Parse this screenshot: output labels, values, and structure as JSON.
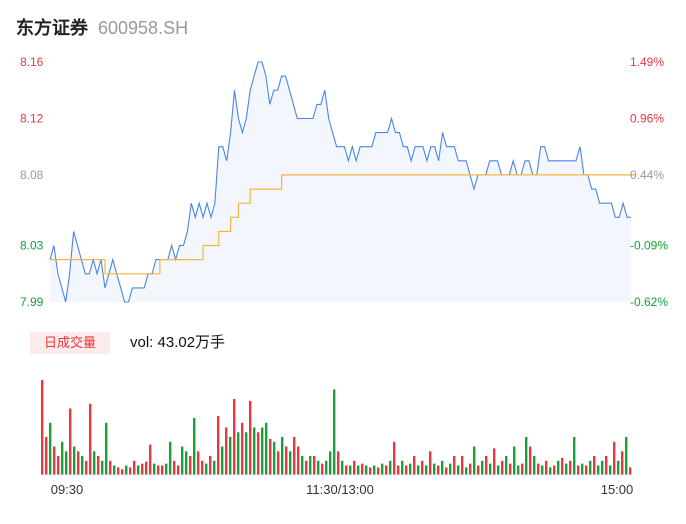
{
  "header": {
    "name": "东方证券",
    "code": "600958.SH"
  },
  "volume_panel": {
    "badge": "日成交量",
    "label_prefix": "vol: ",
    "value": "43.02万手"
  },
  "colors": {
    "up": "#e8383d",
    "down": "#1aa038",
    "neutral": "#999999",
    "price_line": "#4a85e8",
    "avg_line": "#f4b63f"
  },
  "chart_data": [
    {
      "type": "line",
      "title": "",
      "y_ticks": [
        "8.16",
        "8.12",
        "8.08",
        "8.03",
        "7.99"
      ],
      "y_tick_values": [
        8.16,
        8.12,
        8.08,
        8.03,
        7.99
      ],
      "pct_ticks": [
        "1.49%",
        "0.96%",
        "0.44%",
        "-0.09%",
        "-0.62%"
      ],
      "x_ticks": [
        "09:30",
        "11:30/13:00",
        "15:00"
      ],
      "ylim": [
        7.99,
        8.16
      ],
      "grid": false,
      "series": [
        {
          "values": [
            8.02,
            8.03,
            8.01,
            8.0,
            7.99,
            8.01,
            8.04,
            8.03,
            8.02,
            8.01,
            8.01,
            8.02,
            8.01,
            8.02,
            8.0,
            8.01,
            8.02,
            8.01,
            8.0,
            7.99,
            7.99,
            8.0,
            8.0,
            8.0,
            8.0,
            8.01,
            8.01,
            8.02,
            8.02,
            8.02,
            8.02,
            8.03,
            8.02,
            8.03,
            8.03,
            8.04,
            8.06,
            8.05,
            8.06,
            8.05,
            8.06,
            8.05,
            8.06,
            8.1,
            8.1,
            8.09,
            8.11,
            8.14,
            8.12,
            8.11,
            8.12,
            8.14,
            8.15,
            8.16,
            8.16,
            8.15,
            8.13,
            8.14,
            8.14,
            8.15,
            8.15,
            8.14,
            8.13,
            8.12,
            8.12,
            8.12,
            8.12,
            8.12,
            8.13,
            8.13,
            8.14,
            8.12,
            8.11,
            8.1,
            8.1,
            8.1,
            8.09,
            8.1,
            8.09,
            8.1,
            8.1,
            8.1,
            8.1,
            8.11,
            8.11,
            8.11,
            8.11,
            8.12,
            8.11,
            8.11,
            8.1,
            8.1,
            8.09,
            8.1,
            8.1,
            8.1,
            8.09,
            8.1,
            8.1,
            8.09,
            8.11,
            8.1,
            8.1,
            8.1,
            8.09,
            8.09,
            8.09,
            8.08,
            8.07,
            8.08,
            8.08,
            8.08,
            8.09,
            8.09,
            8.09,
            8.08,
            8.08,
            8.08,
            8.09,
            8.08,
            8.08,
            8.09,
            8.09,
            8.08,
            8.08,
            8.1,
            8.1,
            8.09,
            8.09,
            8.09,
            8.09,
            8.09,
            8.09,
            8.09,
            8.09,
            8.1,
            8.08,
            8.08,
            8.07,
            8.07,
            8.06,
            8.06,
            8.06,
            8.06,
            8.05,
            8.05,
            8.06,
            8.05,
            8.05
          ]
        },
        {
          "values": [
            8.02,
            8.02,
            8.02,
            8.02,
            8.02,
            8.02,
            8.02,
            8.02,
            8.02,
            8.02,
            8.02,
            8.02,
            8.02,
            8.02,
            8.01,
            8.01,
            8.01,
            8.01,
            8.01,
            8.01,
            8.01,
            8.01,
            8.01,
            8.01,
            8.01,
            8.01,
            8.01,
            8.01,
            8.02,
            8.02,
            8.02,
            8.02,
            8.02,
            8.02,
            8.02,
            8.02,
            8.02,
            8.02,
            8.02,
            8.03,
            8.03,
            8.03,
            8.03,
            8.04,
            8.04,
            8.04,
            8.05,
            8.05,
            8.06,
            8.06,
            8.06,
            8.07,
            8.07,
            8.07,
            8.07,
            8.07,
            8.07,
            8.07,
            8.07,
            8.08,
            8.08,
            8.08,
            8.08,
            8.08,
            8.08,
            8.08,
            8.08,
            8.08,
            8.08,
            8.08,
            8.08,
            8.08,
            8.08,
            8.08,
            8.08,
            8.08,
            8.08,
            8.08,
            8.08,
            8.08,
            8.08,
            8.08,
            8.08,
            8.08,
            8.08,
            8.08,
            8.08,
            8.08,
            8.08,
            8.08,
            8.08,
            8.08,
            8.08,
            8.08,
            8.08,
            8.08,
            8.08,
            8.08,
            8.08,
            8.08,
            8.08,
            8.08,
            8.08,
            8.08,
            8.08,
            8.08,
            8.08,
            8.08,
            8.08,
            8.08,
            8.08,
            8.08,
            8.08,
            8.08,
            8.08,
            8.08,
            8.08,
            8.08,
            8.08,
            8.08,
            8.08,
            8.08,
            8.08,
            8.08,
            8.08,
            8.08,
            8.08,
            8.08,
            8.08,
            8.08,
            8.08,
            8.08,
            8.08,
            8.08,
            8.08,
            8.08,
            8.08,
            8.08,
            8.08,
            8.08,
            8.08,
            8.08,
            8.08,
            8.08,
            8.08,
            8.08,
            8.08,
            8.08,
            8.08,
            8.08
          ]
        }
      ]
    },
    {
      "type": "bar",
      "title": "",
      "ylim": [
        0,
        100
      ],
      "series": [
        {
          "values": [
            100,
            40,
            55,
            30,
            20,
            35,
            25,
            70,
            30,
            25,
            20,
            15,
            75,
            25,
            20,
            15,
            55,
            15,
            10,
            8,
            6,
            10,
            8,
            15,
            10,
            12,
            14,
            32,
            12,
            10,
            10,
            12,
            35,
            15,
            10,
            30,
            25,
            20,
            60,
            25,
            15,
            12,
            20,
            15,
            62,
            30,
            50,
            40,
            80,
            45,
            55,
            45,
            78,
            50,
            45,
            50,
            55,
            38,
            35,
            25,
            40,
            30,
            25,
            40,
            30,
            20,
            15,
            20,
            20,
            15,
            12,
            15,
            25,
            90,
            25,
            15,
            10,
            10,
            15,
            10,
            12,
            10,
            8,
            10,
            8,
            12,
            10,
            15,
            35,
            10,
            15,
            10,
            12,
            20,
            10,
            15,
            10,
            25,
            12,
            10,
            15,
            8,
            12,
            20,
            10,
            20,
            8,
            12,
            30,
            10,
            15,
            20,
            12,
            28,
            10,
            15,
            20,
            12,
            30,
            10,
            12,
            40,
            30,
            20,
            12,
            10,
            15,
            8,
            10,
            15,
            18,
            12,
            15,
            40,
            10,
            12,
            10,
            15,
            20,
            10,
            15,
            20,
            10,
            35,
            15,
            25,
            40,
            8
          ]
        },
        {
          "dirs": [
            "u",
            "u",
            "d",
            "u",
            "u",
            "d",
            "d",
            "u",
            "d",
            "u",
            "d",
            "u",
            "u",
            "d",
            "u",
            "d",
            "d",
            "u",
            "d",
            "u",
            "u",
            "d",
            "u",
            "u",
            "d",
            "u",
            "u",
            "u",
            "d",
            "u",
            "u",
            "d",
            "d",
            "u",
            "u",
            "d",
            "d",
            "u",
            "d",
            "u",
            "u",
            "d",
            "u",
            "d",
            "u",
            "d",
            "u",
            "d",
            "u",
            "d",
            "u",
            "d",
            "u",
            "d",
            "u",
            "d",
            "d",
            "u",
            "d",
            "u",
            "d",
            "u",
            "d",
            "u",
            "u",
            "d",
            "u",
            "d",
            "u",
            "d",
            "u",
            "d",
            "d",
            "d",
            "u",
            "d",
            "u",
            "d",
            "u",
            "d",
            "u",
            "d",
            "u",
            "d",
            "u",
            "d",
            "u",
            "d",
            "u",
            "u",
            "d",
            "u",
            "d",
            "u",
            "d",
            "u",
            "d",
            "u",
            "d",
            "u",
            "d",
            "u",
            "d",
            "u",
            "d",
            "u",
            "d",
            "u",
            "d",
            "u",
            "d",
            "u",
            "d",
            "u",
            "d",
            "u",
            "d",
            "u",
            "d",
            "d",
            "u",
            "d",
            "u",
            "d",
            "u",
            "d",
            "u",
            "d",
            "u",
            "d",
            "u",
            "d",
            "u",
            "d",
            "u",
            "d",
            "u",
            "d",
            "u",
            "d",
            "d",
            "u",
            "d",
            "u",
            "d",
            "u",
            "d",
            "u",
            "d",
            "u"
          ]
        }
      ]
    }
  ]
}
